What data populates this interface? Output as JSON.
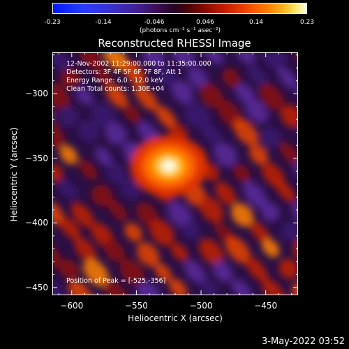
{
  "colorbar": {
    "ticks": [
      "-0.23",
      "-0.14",
      "-0.046",
      "0.046",
      "0.14",
      "0.23"
    ],
    "unit": "(photons cm⁻² s⁻¹ asec⁻²)"
  },
  "chart_data": {
    "type": "heatmap",
    "title": "Reconstructed RHESSI Image",
    "xlabel": "Heliocentric X (arcsec)",
    "ylabel": "Heliocentric Y (arcsec)",
    "xlim": [
      -615,
      -425
    ],
    "ylim": [
      -456,
      -268
    ],
    "x_ticks": [
      -600,
      -550,
      -500,
      -450
    ],
    "y_ticks": [
      -300,
      -350,
      -400,
      -450
    ],
    "x_tick_labels": [
      "−600",
      "−550",
      "−500",
      "−450"
    ],
    "y_tick_labels": [
      "−300",
      "−350",
      "−400",
      "−450"
    ],
    "value_range": [
      -0.23,
      0.23
    ],
    "peak": [
      -525,
      -356
    ],
    "annotations": [
      "12-Nov-2002 11:29:00.000 to 11:35:00.000",
      "Detectors: 3F 4F 5F 6F 7F 8F, Att 1",
      "Energy Range: 6.0 - 12.0 keV",
      "Clean     Total counts: 1.30E+04",
      "Position of Peak = [-525,-356]"
    ]
  },
  "footer": {
    "timestamp": "3-May-2022 03:52"
  },
  "colors": {
    "background": "#000000",
    "foreground": "#ffffff"
  }
}
